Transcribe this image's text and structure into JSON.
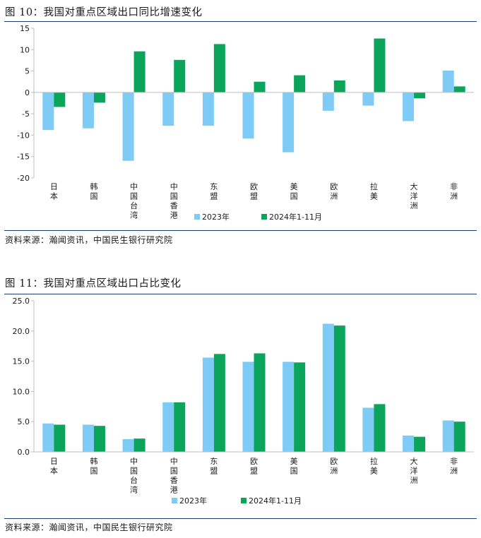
{
  "colors": {
    "series_2023": "#7ecbf5",
    "series_2024": "#0aa55a",
    "rule": "#1f3c6e"
  },
  "figures": [
    {
      "title": "图 10：我国对重点区域出口同比增速变化",
      "source": "资料来源：瀚闻资讯，中国民生银行研究院"
    },
    {
      "title": "图 11：我国对重点区域出口占比变化",
      "source": "资料来源：瀚闻资讯，中国民生银行研究院"
    }
  ],
  "chart_data": [
    {
      "type": "bar",
      "title": "",
      "xlabel": "",
      "ylabel": "",
      "categories": [
        "日本",
        "韩国",
        "中国台湾",
        "中国香港",
        "东盟",
        "欧盟",
        "美国",
        "欧洲",
        "拉美",
        "大洋洲",
        "非洲"
      ],
      "series": [
        {
          "name": "2023年",
          "values": [
            -8.8,
            -8.4,
            -16.0,
            -7.8,
            -7.8,
            -10.8,
            -14.0,
            -4.3,
            -3.1,
            -6.7,
            5.1
          ]
        },
        {
          "name": "2024年1-11月",
          "values": [
            -3.4,
            -2.4,
            9.6,
            7.6,
            11.3,
            2.5,
            4.0,
            2.8,
            12.6,
            -1.4,
            1.4
          ]
        }
      ],
      "ylim": [
        -20,
        15
      ],
      "yticks": [
        "15",
        "10",
        "5",
        "0",
        "-5",
        "-10",
        "-15",
        "-20"
      ],
      "grid": false,
      "legend": "bottom"
    },
    {
      "type": "bar",
      "title": "",
      "xlabel": "",
      "ylabel": "",
      "categories": [
        "日本",
        "韩国",
        "中国台湾",
        "中国香港",
        "东盟",
        "欧盟",
        "美国",
        "欧洲",
        "拉美",
        "大洋洲",
        "非洲"
      ],
      "series": [
        {
          "name": "2023年",
          "values": [
            4.7,
            4.5,
            2.1,
            8.2,
            15.6,
            14.9,
            14.9,
            21.2,
            7.3,
            2.7,
            5.2
          ]
        },
        {
          "name": "2024年1-11月",
          "values": [
            4.5,
            4.3,
            2.2,
            8.2,
            16.2,
            16.3,
            14.8,
            20.9,
            7.9,
            2.5,
            5.0
          ]
        }
      ],
      "ylim": [
        0,
        25
      ],
      "yticks": [
        "25.0",
        "20.0",
        "15.0",
        "10.0",
        "5.0",
        "0.0"
      ],
      "grid": false,
      "legend": "bottom"
    }
  ]
}
